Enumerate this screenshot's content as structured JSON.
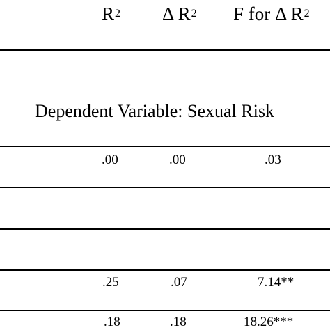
{
  "table": {
    "headers": [
      {
        "label": "R",
        "superscript": "2"
      },
      {
        "label": "Δ R",
        "superscript": "2"
      },
      {
        "label": "F for Δ R",
        "superscript": "2"
      }
    ],
    "section_label": "Dependent Variable: Sexual Risk",
    "rows": [
      {
        "r2": ".00",
        "delta_r2": ".00",
        "f_delta_r2": ".03"
      },
      {
        "r2": "",
        "delta_r2": "",
        "f_delta_r2": ""
      },
      {
        "r2": "",
        "delta_r2": "",
        "f_delta_r2": ""
      },
      {
        "r2": ".25",
        "delta_r2": ".07",
        "f_delta_r2": "7.14**"
      },
      {
        "r2": ".18",
        "delta_r2": ".18",
        "f_delta_r2": "18.26***"
      }
    ]
  }
}
